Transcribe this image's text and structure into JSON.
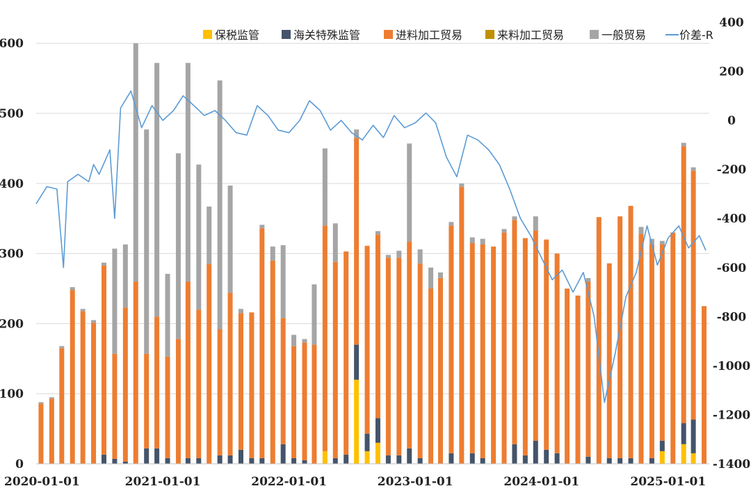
{
  "chart_data": {
    "type": "bar",
    "stacked": true,
    "title": "",
    "xlabel": "",
    "ylabel": "",
    "y2label": "",
    "ylim": [
      0,
      630
    ],
    "y2lim": [
      -1400,
      400
    ],
    "xlim": [
      "2020-01-01",
      "2025-04-30"
    ],
    "yticks": [
      0,
      100,
      200,
      300,
      400,
      500,
      600
    ],
    "y2ticks": [
      -1400,
      -1200,
      -1000,
      -800,
      -600,
      -400,
      -200,
      0,
      200,
      400
    ],
    "xticks": [
      "2020-01-01",
      "2021-01-01",
      "2022-01-01",
      "2023-01-01",
      "2024-01-01",
      "2025-01-01"
    ],
    "grid": "horizontal",
    "legend_position": "top-right",
    "categories": [
      "2020-01",
      "2020-02",
      "2020-03",
      "2020-04",
      "2020-05",
      "2020-06",
      "2020-07",
      "2020-08",
      "2020-09",
      "2020-10",
      "2020-11",
      "2020-12",
      "2021-01",
      "2021-02",
      "2021-03",
      "2021-04",
      "2021-05",
      "2021-06",
      "2021-07",
      "2021-08",
      "2021-09",
      "2021-10",
      "2021-11",
      "2021-12",
      "2022-01",
      "2022-02",
      "2022-03",
      "2022-04",
      "2022-05",
      "2022-06",
      "2022-07",
      "2022-08",
      "2022-09",
      "2022-10",
      "2022-11",
      "2022-12",
      "2023-01",
      "2023-02",
      "2023-03",
      "2023-04",
      "2023-05",
      "2023-06",
      "2023-07",
      "2023-08",
      "2023-09",
      "2023-10",
      "2023-11",
      "2023-12",
      "2024-01",
      "2024-02",
      "2024-03",
      "2024-04",
      "2024-05",
      "2024-06",
      "2024-07",
      "2024-08",
      "2024-09",
      "2024-10",
      "2024-11",
      "2024-12",
      "2025-01",
      "2025-02",
      "2025-03",
      "2025-04"
    ],
    "series": [
      {
        "name": "保税监管",
        "color": "#FFC000",
        "values": [
          0,
          0,
          0,
          0,
          0,
          0,
          0,
          0,
          0,
          0,
          0,
          0,
          0,
          0,
          0,
          0,
          0,
          0,
          0,
          0,
          0,
          0,
          0,
          0,
          0,
          0,
          0,
          18,
          0,
          0,
          120,
          18,
          30,
          0,
          0,
          0,
          0,
          0,
          0,
          0,
          0,
          0,
          0,
          0,
          0,
          0,
          0,
          0,
          0,
          0,
          0,
          0,
          0,
          0,
          0,
          0,
          0,
          0,
          0,
          18,
          0,
          28,
          15,
          0
        ]
      },
      {
        "name": "海关特殊监管",
        "color": "#44546A",
        "values": [
          0,
          0,
          0,
          0,
          0,
          0,
          13,
          7,
          3,
          0,
          22,
          22,
          8,
          0,
          8,
          8,
          0,
          12,
          12,
          20,
          8,
          8,
          0,
          28,
          8,
          5,
          0,
          0,
          8,
          13,
          50,
          25,
          35,
          12,
          12,
          22,
          8,
          0,
          0,
          15,
          0,
          15,
          8,
          0,
          0,
          28,
          12,
          33,
          20,
          15,
          0,
          0,
          10,
          0,
          8,
          8,
          8,
          0,
          8,
          15,
          0,
          30,
          48,
          0
        ]
      },
      {
        "name": "进料加工贸易",
        "color": "#ED7D31",
        "values": [
          86,
          93,
          165,
          248,
          218,
          201,
          270,
          150,
          220,
          260,
          135,
          188,
          145,
          178,
          252,
          212,
          285,
          180,
          232,
          195,
          208,
          328,
          290,
          180,
          160,
          168,
          170,
          322,
          280,
          290,
          295,
          268,
          262,
          282,
          282,
          295,
          278,
          250,
          265,
          325,
          395,
          300,
          305,
          310,
          330,
          320,
          310,
          300,
          300,
          285,
          250,
          240,
          250,
          352,
          278,
          345,
          360,
          328,
          305,
          280,
          330,
          395,
          355,
          225
        ]
      },
      {
        "name": "来料加工贸易",
        "color": "#BF9000",
        "values": [
          0,
          0,
          0,
          0,
          0,
          0,
          0,
          0,
          0,
          0,
          0,
          0,
          0,
          0,
          0,
          0,
          0,
          0,
          0,
          0,
          0,
          0,
          0,
          0,
          0,
          0,
          0,
          0,
          0,
          0,
          0,
          0,
          0,
          0,
          0,
          0,
          0,
          0,
          0,
          0,
          0,
          0,
          0,
          0,
          0,
          0,
          0,
          0,
          0,
          0,
          0,
          0,
          0,
          0,
          0,
          0,
          0,
          0,
          0,
          0,
          0,
          0,
          0,
          0
        ]
      },
      {
        "name": "一般贸易",
        "color": "#A5A5A5",
        "values": [
          2,
          2,
          3,
          4,
          3,
          4,
          4,
          150,
          90,
          340,
          320,
          362,
          118,
          265,
          312,
          207,
          82,
          355,
          153,
          6,
          0,
          5,
          20,
          104,
          16,
          5,
          86,
          110,
          55,
          0,
          12,
          0,
          5,
          4,
          10,
          140,
          20,
          30,
          8,
          5,
          5,
          8,
          8,
          0,
          5,
          5,
          0,
          20,
          0,
          0,
          0,
          0,
          5,
          0,
          0,
          0,
          0,
          10,
          8,
          5,
          0,
          5,
          5,
          0
        ]
      }
    ],
    "line": {
      "name": "价差-R",
      "color": "#5B9BD5",
      "axis": "right",
      "points": [
        [
          "2020-01-01",
          -340
        ],
        [
          "2020-02-01",
          -270
        ],
        [
          "2020-03-01",
          -280
        ],
        [
          "2020-03-20",
          -600
        ],
        [
          "2020-04-01",
          -250
        ],
        [
          "2020-05-01",
          -220
        ],
        [
          "2020-06-01",
          -250
        ],
        [
          "2020-06-15",
          -180
        ],
        [
          "2020-07-01",
          -220
        ],
        [
          "2020-08-01",
          -120
        ],
        [
          "2020-08-15",
          -400
        ],
        [
          "2020-09-01",
          50
        ],
        [
          "2020-10-01",
          120
        ],
        [
          "2020-11-01",
          -30
        ],
        [
          "2020-12-01",
          60
        ],
        [
          "2021-01-01",
          0
        ],
        [
          "2021-02-01",
          40
        ],
        [
          "2021-03-01",
          100
        ],
        [
          "2021-04-01",
          60
        ],
        [
          "2021-05-01",
          20
        ],
        [
          "2021-06-01",
          40
        ],
        [
          "2021-07-01",
          0
        ],
        [
          "2021-08-01",
          -50
        ],
        [
          "2021-09-01",
          -60
        ],
        [
          "2021-10-01",
          60
        ],
        [
          "2021-11-01",
          20
        ],
        [
          "2021-12-01",
          -40
        ],
        [
          "2022-01-01",
          -50
        ],
        [
          "2022-02-01",
          0
        ],
        [
          "2022-03-01",
          80
        ],
        [
          "2022-04-01",
          40
        ],
        [
          "2022-05-01",
          -40
        ],
        [
          "2022-06-01",
          0
        ],
        [
          "2022-07-01",
          -50
        ],
        [
          "2022-08-01",
          -80
        ],
        [
          "2022-09-01",
          -20
        ],
        [
          "2022-10-01",
          -70
        ],
        [
          "2022-11-01",
          20
        ],
        [
          "2022-12-01",
          -30
        ],
        [
          "2023-01-01",
          -10
        ],
        [
          "2023-02-01",
          30
        ],
        [
          "2023-03-01",
          -10
        ],
        [
          "2023-04-01",
          -150
        ],
        [
          "2023-05-01",
          -230
        ],
        [
          "2023-06-01",
          -60
        ],
        [
          "2023-07-01",
          -80
        ],
        [
          "2023-08-01",
          -120
        ],
        [
          "2023-09-01",
          -180
        ],
        [
          "2023-10-01",
          -280
        ],
        [
          "2023-11-01",
          -400
        ],
        [
          "2023-12-01",
          -470
        ],
        [
          "2024-01-01",
          -560
        ],
        [
          "2024-02-01",
          -650
        ],
        [
          "2024-03-01",
          -610
        ],
        [
          "2024-04-01",
          -700
        ],
        [
          "2024-05-01",
          -620
        ],
        [
          "2024-06-01",
          -800
        ],
        [
          "2024-07-01",
          -1150
        ],
        [
          "2024-08-01",
          -950
        ],
        [
          "2024-09-01",
          -720
        ],
        [
          "2024-10-01",
          -620
        ],
        [
          "2024-11-01",
          -430
        ],
        [
          "2024-12-01",
          -590
        ],
        [
          "2025-01-01",
          -480
        ],
        [
          "2025-02-01",
          -430
        ],
        [
          "2025-03-01",
          -520
        ],
        [
          "2025-04-01",
          -470
        ],
        [
          "2025-04-20",
          -530
        ]
      ]
    }
  }
}
